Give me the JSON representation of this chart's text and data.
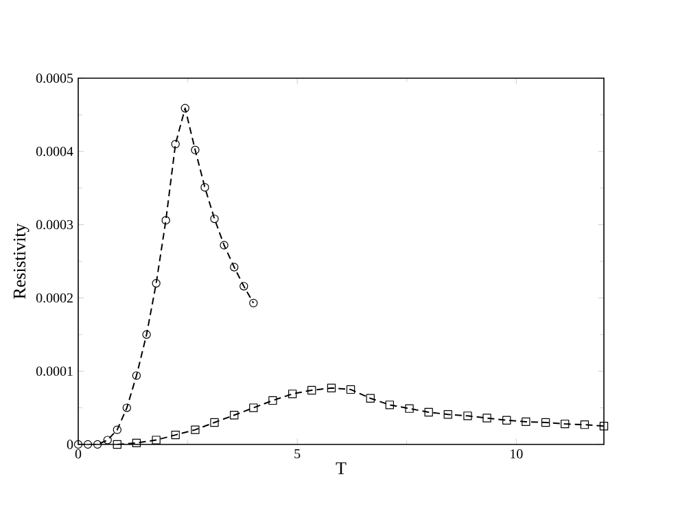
{
  "chart_data": {
    "type": "line",
    "xlabel": "T",
    "ylabel": "Resistivity",
    "xlim": [
      0,
      12
    ],
    "xticks": [
      0,
      5,
      10
    ],
    "ylim": [
      0,
      0.0005
    ],
    "yticks": [
      0,
      0.0001,
      0.0002,
      0.0003,
      0.0004,
      0.0005
    ],
    "grid": false,
    "legend": false,
    "line_style": "dashed",
    "series": [
      {
        "color": "#000000",
        "marker": "circle",
        "x": [
          0,
          0.22,
          0.44,
          0.67,
          0.89,
          1.11,
          1.33,
          1.56,
          1.78,
          2.0,
          2.22,
          2.44,
          2.67,
          2.89,
          3.11,
          3.33,
          3.56,
          3.78,
          4.0
        ],
        "values": [
          0,
          0,
          0,
          6e-06,
          2e-05,
          5e-05,
          9.4e-05,
          0.00015,
          0.00022,
          0.000306,
          0.00041,
          0.000459,
          0.000402,
          0.000351,
          0.000308,
          0.000272,
          0.000242,
          0.000216,
          0.000193
        ]
      },
      {
        "color": "#000000",
        "marker": "square",
        "x": [
          0.89,
          1.33,
          1.78,
          2.22,
          2.67,
          3.11,
          3.56,
          4.0,
          4.44,
          4.89,
          5.33,
          5.78,
          6.22,
          6.67,
          7.11,
          7.56,
          8.0,
          8.44,
          8.89,
          9.33,
          9.78,
          10.22,
          10.67,
          11.11,
          11.56,
          12.0
        ],
        "values": [
          0,
          2e-06,
          6e-06,
          1.3e-05,
          2e-05,
          3e-05,
          4e-05,
          5e-05,
          6e-05,
          6.9e-05,
          7.4e-05,
          7.7e-05,
          7.5e-05,
          6.3e-05,
          5.4e-05,
          4.9e-05,
          4.4e-05,
          4.1e-05,
          3.9e-05,
          3.6e-05,
          3.3e-05,
          3.1e-05,
          3e-05,
          2.8e-05,
          2.7e-05,
          2.5e-05
        ]
      }
    ]
  }
}
